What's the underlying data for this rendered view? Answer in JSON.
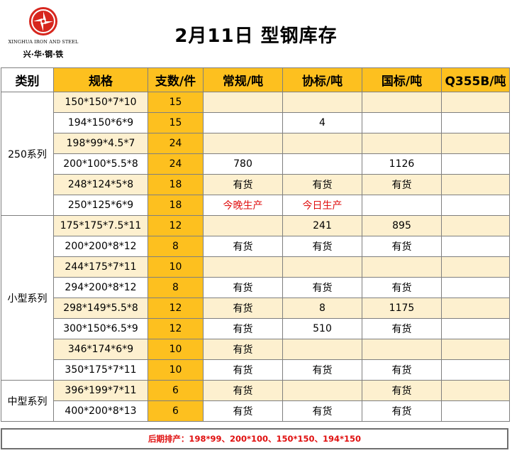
{
  "header": {
    "title": "2月11日 型钢库存",
    "logo": {
      "en": "XINGHUA IRON AND STEEL",
      "cn": "兴·华·钢·铁"
    }
  },
  "table": {
    "columns": [
      "类别",
      "规格",
      "支数/件",
      "常规/吨",
      "协标/吨",
      "国标/吨",
      "Q355B/吨"
    ],
    "groups": [
      {
        "category": "250系列",
        "rows": [
          {
            "spec": "150*150*7*10",
            "qty": "15",
            "regular": "",
            "association": "",
            "national": "",
            "q355b": ""
          },
          {
            "spec": "194*150*6*9",
            "qty": "15",
            "regular": "",
            "association": "4",
            "national": "",
            "q355b": ""
          },
          {
            "spec": "198*99*4.5*7",
            "qty": "24",
            "regular": "",
            "association": "",
            "national": "",
            "q355b": ""
          },
          {
            "spec": "200*100*5.5*8",
            "qty": "24",
            "regular": "780",
            "association": "",
            "national": "1126",
            "q355b": ""
          },
          {
            "spec": "248*124*5*8",
            "qty": "18",
            "regular": "有货",
            "association": "有货",
            "national": "有货",
            "q355b": ""
          },
          {
            "spec": "250*125*6*9",
            "qty": "18",
            "regular": "今晚生产",
            "association": "今日生产",
            "national": "",
            "q355b": ""
          }
        ]
      },
      {
        "category": "小型系列",
        "rows": [
          {
            "spec": "175*175*7.5*11",
            "qty": "12",
            "regular": "",
            "association": "241",
            "national": "895",
            "q355b": ""
          },
          {
            "spec": "200*200*8*12",
            "qty": "8",
            "regular": "有货",
            "association": "有货",
            "national": "有货",
            "q355b": ""
          },
          {
            "spec": "244*175*7*11",
            "qty": "10",
            "regular": "",
            "association": "",
            "national": "",
            "q355b": ""
          },
          {
            "spec": "294*200*8*12",
            "qty": "8",
            "regular": "有货",
            "association": "有货",
            "national": "有货",
            "q355b": ""
          },
          {
            "spec": "298*149*5.5*8",
            "qty": "12",
            "regular": "有货",
            "association": "8",
            "national": "1175",
            "q355b": ""
          },
          {
            "spec": "300*150*6.5*9",
            "qty": "12",
            "regular": "有货",
            "association": "510",
            "national": "有货",
            "q355b": ""
          },
          {
            "spec": "346*174*6*9",
            "qty": "10",
            "regular": "有货",
            "association": "",
            "national": "",
            "q355b": ""
          },
          {
            "spec": "350*175*7*11",
            "qty": "10",
            "regular": "有货",
            "association": "有货",
            "national": "有货",
            "q355b": ""
          }
        ]
      },
      {
        "category": "中型系列",
        "rows": [
          {
            "spec": "396*199*7*11",
            "qty": "6",
            "regular": "有货",
            "association": "",
            "national": "有货",
            "q355b": ""
          },
          {
            "spec": "400*200*8*13",
            "qty": "6",
            "regular": "有货",
            "association": "有货",
            "national": "有货",
            "q355b": ""
          }
        ]
      }
    ]
  },
  "footer": {
    "note": "后期排产：198*99、200*100、150*150、194*150"
  },
  "colors": {
    "accent": "#fdc01f",
    "alt_row": "#fdf0cf",
    "highlight_text": "#e01010",
    "logo": "#d7261e"
  }
}
